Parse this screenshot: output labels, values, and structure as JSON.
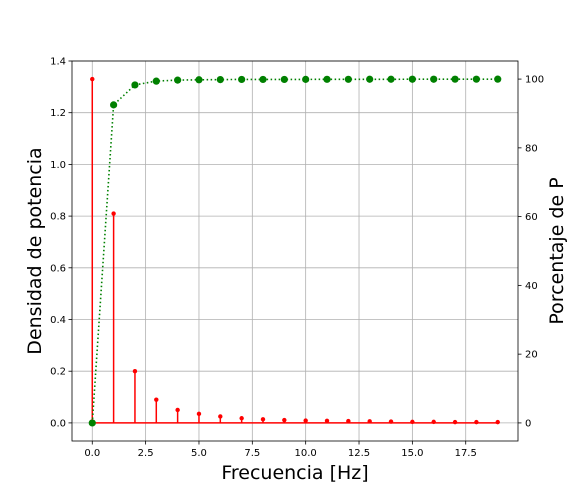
{
  "chart_data": {
    "type": "stem+line",
    "xlabel": "Frecuencia [Hz]",
    "ylabel_left": "Densidad de potencia",
    "ylabel_right": "Porcentaje de P",
    "xlim": [
      -0.95,
      19.95
    ],
    "ylim_left": [
      -0.07,
      1.4
    ],
    "ylim_right": [
      -5.26,
      105.26
    ],
    "xticks": [
      0.0,
      2.5,
      5.0,
      7.5,
      10.0,
      12.5,
      15.0,
      17.5
    ],
    "xtick_labels": [
      "0.0",
      "2.5",
      "5.0",
      "7.5",
      "10.0",
      "12.5",
      "15.0",
      "17.5"
    ],
    "yticks_left": [
      0.0,
      0.2,
      0.4,
      0.6,
      0.8,
      1.0,
      1.2,
      1.4
    ],
    "ytick_labels_left": [
      "0.0",
      "0.2",
      "0.4",
      "0.6",
      "0.8",
      "1.0",
      "1.2",
      "1.4"
    ],
    "yticks_right": [
      0,
      20,
      40,
      60,
      80,
      100
    ],
    "ytick_labels_right": [
      "0",
      "20",
      "40",
      "60",
      "80",
      "100"
    ],
    "grid": true,
    "series": [
      {
        "axis": "left",
        "style": "stem",
        "color": "#ff0000",
        "x": [
          0,
          1,
          2,
          3,
          4,
          5,
          6,
          7,
          8,
          9,
          10,
          11,
          12,
          13,
          14,
          15,
          16,
          17,
          18,
          19
        ],
        "values": [
          1.33,
          0.81,
          0.2,
          0.09,
          0.05,
          0.035,
          0.025,
          0.018,
          0.014,
          0.011,
          0.009,
          0.008,
          0.007,
          0.006,
          0.005,
          0.004,
          0.004,
          0.003,
          0.003,
          0.003
        ]
      },
      {
        "axis": "right",
        "style": "dotted-line-markers",
        "color": "#008000",
        "x": [
          0,
          1,
          2,
          3,
          4,
          5,
          6,
          7,
          8,
          9,
          10,
          11,
          12,
          13,
          14,
          15,
          16,
          17,
          18,
          19
        ],
        "values": [
          0,
          92.5,
          98.3,
          99.4,
          99.7,
          99.8,
          99.85,
          99.9,
          99.9,
          99.9,
          99.92,
          99.93,
          99.94,
          99.95,
          99.95,
          99.96,
          99.96,
          99.97,
          99.97,
          99.98
        ]
      }
    ]
  }
}
